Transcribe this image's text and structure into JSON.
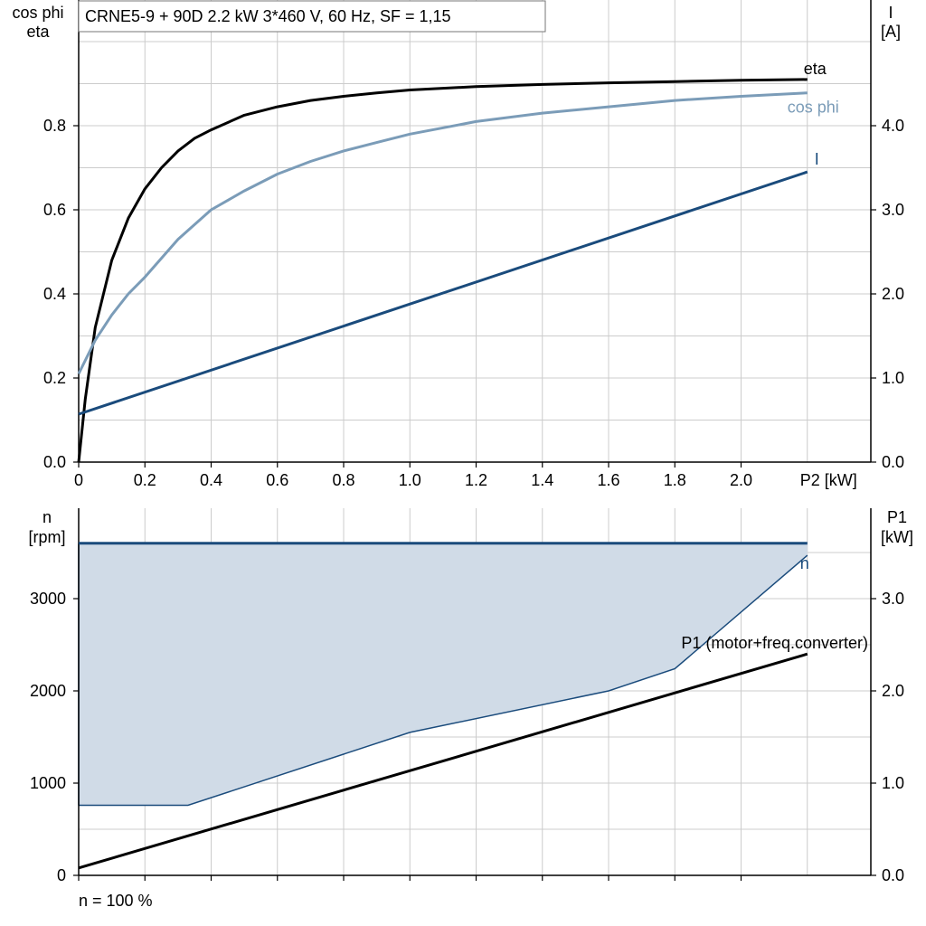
{
  "chart_data": [
    {
      "type": "line",
      "title": "CRNE5-9 + 90D   2.2 kW   3*460 V, 60 Hz, SF = 1,15",
      "xlabel": "P2 [kW]",
      "xlim": [
        0,
        2.4
      ],
      "x_ticks": [
        "0",
        "0.2",
        "0.4",
        "0.6",
        "0.8",
        "1.0",
        "1.2",
        "1.4",
        "1.6",
        "1.8",
        "2.0"
      ],
      "ylabel_left": [
        "cos phi",
        "eta"
      ],
      "ylim_left": [
        0,
        1.0
      ],
      "y_ticks_left": [
        "0.0",
        "0.2",
        "0.4",
        "0.6",
        "0.8"
      ],
      "ylabel_right": [
        "I",
        "[A]"
      ],
      "ylim_right": [
        0,
        5.0
      ],
      "y_ticks_right": [
        "0.0",
        "1.0",
        "2.0",
        "3.0",
        "4.0"
      ],
      "grid": true,
      "series": [
        {
          "name": "eta",
          "axis": "left",
          "color": "#000000",
          "x": [
            0,
            0.02,
            0.05,
            0.1,
            0.15,
            0.2,
            0.25,
            0.3,
            0.35,
            0.4,
            0.5,
            0.6,
            0.7,
            0.8,
            0.9,
            1.0,
            1.2,
            1.4,
            1.6,
            1.8,
            2.0,
            2.2
          ],
          "y": [
            0,
            0.15,
            0.32,
            0.48,
            0.58,
            0.65,
            0.7,
            0.74,
            0.77,
            0.79,
            0.825,
            0.845,
            0.86,
            0.87,
            0.878,
            0.885,
            0.893,
            0.898,
            0.902,
            0.905,
            0.908,
            0.91
          ]
        },
        {
          "name": "cos phi",
          "axis": "left",
          "color": "#7b9cb8",
          "x": [
            0,
            0.05,
            0.1,
            0.15,
            0.2,
            0.3,
            0.4,
            0.5,
            0.6,
            0.7,
            0.8,
            0.9,
            1.0,
            1.2,
            1.4,
            1.6,
            1.8,
            2.0,
            2.2
          ],
          "y": [
            0.21,
            0.29,
            0.35,
            0.4,
            0.44,
            0.53,
            0.6,
            0.645,
            0.685,
            0.715,
            0.74,
            0.76,
            0.78,
            0.81,
            0.83,
            0.845,
            0.86,
            0.87,
            0.878
          ]
        },
        {
          "name": "I",
          "axis": "right",
          "color": "#1a4b7c",
          "x": [
            0,
            2.2
          ],
          "y": [
            0.57,
            3.45
          ]
        }
      ]
    },
    {
      "type": "line",
      "xlim": [
        0,
        2.4
      ],
      "ylabel_left": [
        "n",
        "[rpm]"
      ],
      "ylim_left": [
        0,
        3600
      ],
      "y_ticks_left": [
        "0",
        "1000",
        "2000",
        "3000"
      ],
      "ylabel_right": [
        "P1",
        "[kW]"
      ],
      "ylim_right": [
        0,
        3.6
      ],
      "y_ticks_right": [
        "0.0",
        "1.0",
        "2.0",
        "3.0"
      ],
      "grid": true,
      "footnote": "n = 100 %",
      "shaded_band": {
        "x": [
          0,
          2.2
        ],
        "upper_rpm": [
          3600,
          3600
        ],
        "lower_x": [
          0,
          0.33,
          1.0,
          1.6,
          1.8,
          2.2
        ],
        "lower_rpm": [
          760,
          760,
          1550,
          2000,
          2240,
          3470
        ]
      },
      "series": [
        {
          "name": "n",
          "axis": "left",
          "color": "#1a4b7c",
          "x": [
            0,
            2.2
          ],
          "y": [
            3600,
            3600
          ]
        },
        {
          "name": "P1 (motor+freq.converter)",
          "axis": "right",
          "color": "#000000",
          "x": [
            0,
            2.2
          ],
          "y": [
            0.08,
            2.4
          ]
        }
      ]
    }
  ]
}
